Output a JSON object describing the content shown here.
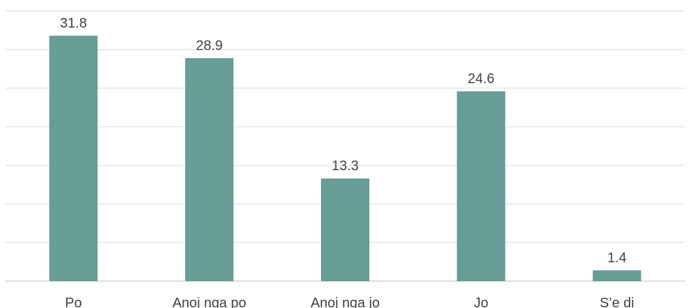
{
  "chart_data": {
    "type": "bar",
    "categories": [
      "Po",
      "Anoj nga po",
      "Anoj nga jo",
      "Jo",
      "S’e di"
    ],
    "values": [
      31.8,
      28.9,
      13.3,
      24.6,
      1.4
    ],
    "data_labels": [
      "31.8",
      "28.9",
      "13.3",
      "24.6",
      "1.4"
    ],
    "title": "",
    "xlabel": "",
    "ylabel": "",
    "ylim": [
      0,
      35
    ],
    "grid": true,
    "y_axis_ticks_shown": false,
    "legend": "none",
    "bar_color": "#669d96",
    "grid_color": "#d9d9d9",
    "label_color": "#404040"
  }
}
